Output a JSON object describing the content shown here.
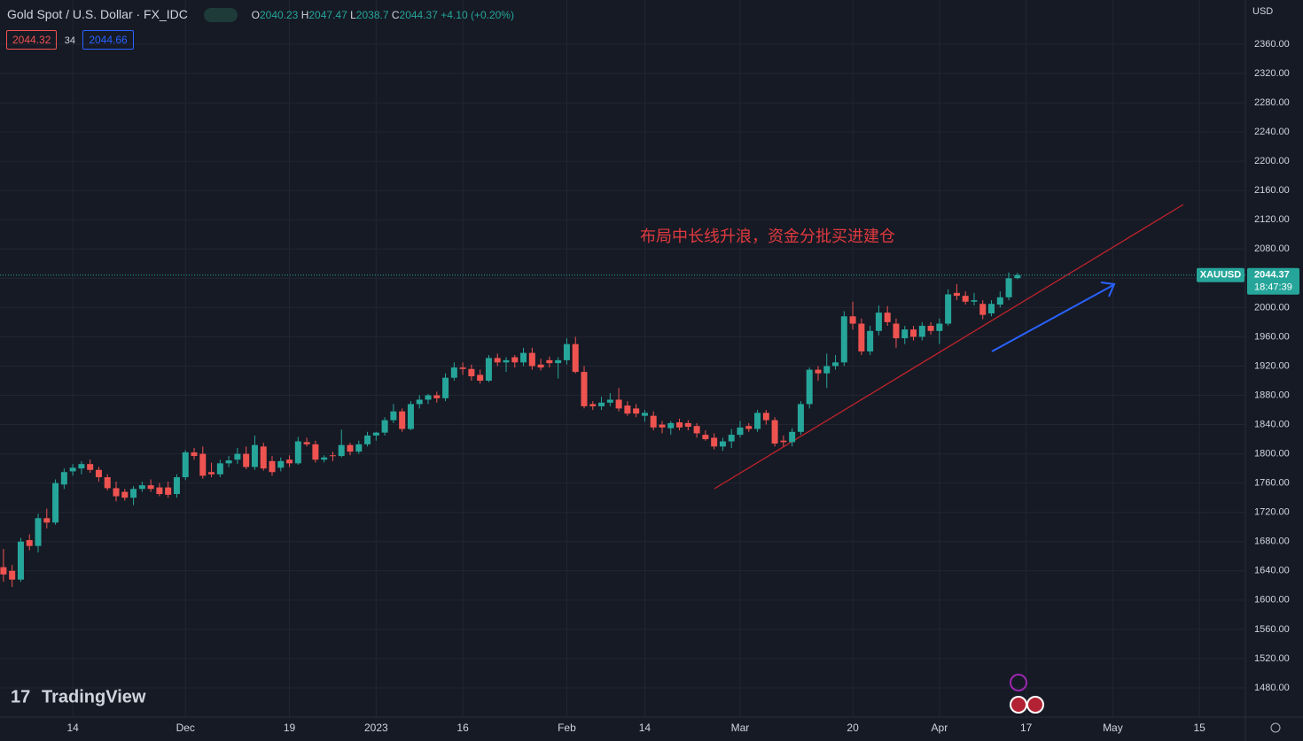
{
  "chart_data": {
    "type": "candlestick",
    "title": "Gold Spot / U.S. Dollar · FX_IDC",
    "ohlc_labels": [
      "O",
      "H",
      "L",
      "C"
    ],
    "change": "+4.10 (+0.20%)",
    "bid": 2044.32,
    "spread": 34,
    "ask": 2044.66,
    "currency": "USD",
    "symbol": "XAUUSD",
    "countdown": "18:47:39",
    "annotation": "布局中长线升浪，资金分批买进建仓",
    "brand": "TradingView",
    "up_color": "#26a69a",
    "down_color": "#ef5350",
    "grid": true,
    "ylim": [
      1440,
      2420.5
    ],
    "xlim": [
      -0.4,
      143.3
    ],
    "yticks": [
      {
        "value": 1480,
        "label": "1480.00"
      },
      {
        "value": 1520,
        "label": "1520.00"
      },
      {
        "value": 1560,
        "label": "1560.00"
      },
      {
        "value": 1600,
        "label": "1600.00"
      },
      {
        "value": 1640,
        "label": "1640.00"
      },
      {
        "value": 1680,
        "label": "1680.00"
      },
      {
        "value": 1720,
        "label": "1720.00"
      },
      {
        "value": 1760,
        "label": "1760.00"
      },
      {
        "value": 1800,
        "label": "1800.00"
      },
      {
        "value": 1840,
        "label": "1840.00"
      },
      {
        "value": 1880,
        "label": "1880.00"
      },
      {
        "value": 1920,
        "label": "1920.00"
      },
      {
        "value": 1960,
        "label": "1960.00"
      },
      {
        "value": 2000,
        "label": "2000.00"
      },
      {
        "value": 2040,
        "label": "2040.00"
      },
      {
        "value": 2080,
        "label": "2080.00"
      },
      {
        "value": 2120,
        "label": "2120.00"
      },
      {
        "value": 2160,
        "label": "2160.00"
      },
      {
        "value": 2200,
        "label": "2200.00"
      },
      {
        "value": 2240,
        "label": "2240.00"
      },
      {
        "value": 2280,
        "label": "2280.00"
      },
      {
        "value": 2320,
        "label": "2320.00"
      },
      {
        "value": 2360,
        "label": "2360.00"
      }
    ],
    "xticks": [
      {
        "value": 8,
        "label": "14"
      },
      {
        "value": 21,
        "label": "Dec"
      },
      {
        "value": 33,
        "label": "19"
      },
      {
        "value": 43,
        "label": "2023"
      },
      {
        "value": 53,
        "label": "16"
      },
      {
        "value": 65,
        "label": "Feb"
      },
      {
        "value": 74,
        "label": "14"
      },
      {
        "value": 85,
        "label": "Mar"
      },
      {
        "value": 98,
        "label": "20"
      },
      {
        "value": 108,
        "label": "Apr"
      },
      {
        "value": 118,
        "label": "17"
      },
      {
        "value": 128,
        "label": "May"
      },
      {
        "value": 138,
        "label": "15"
      }
    ],
    "ohlc": [
      [
        1645,
        1670,
        1625,
        1635
      ],
      [
        1640,
        1648,
        1618,
        1628
      ],
      [
        1628,
        1685,
        1625,
        1680
      ],
      [
        1682,
        1690,
        1668,
        1674
      ],
      [
        1674,
        1718,
        1665,
        1712
      ],
      [
        1712,
        1725,
        1698,
        1706
      ],
      [
        1706,
        1765,
        1703,
        1760
      ],
      [
        1758,
        1780,
        1752,
        1775
      ],
      [
        1776,
        1786,
        1770,
        1781
      ],
      [
        1780,
        1790,
        1772,
        1786
      ],
      [
        1786,
        1792,
        1774,
        1778
      ],
      [
        1778,
        1782,
        1762,
        1768
      ],
      [
        1768,
        1772,
        1750,
        1753
      ],
      [
        1753,
        1762,
        1735,
        1742
      ],
      [
        1748,
        1752,
        1736,
        1740
      ],
      [
        1740,
        1756,
        1730,
        1752
      ],
      [
        1752,
        1762,
        1748,
        1757
      ],
      [
        1757,
        1765,
        1748,
        1752
      ],
      [
        1754,
        1760,
        1742,
        1745
      ],
      [
        1754,
        1762,
        1740,
        1744
      ],
      [
        1745,
        1772,
        1740,
        1768
      ],
      [
        1768,
        1805,
        1764,
        1802
      ],
      [
        1802,
        1808,
        1792,
        1797
      ],
      [
        1800,
        1810,
        1766,
        1770
      ],
      [
        1775,
        1788,
        1768,
        1772
      ],
      [
        1772,
        1792,
        1768,
        1787
      ],
      [
        1787,
        1797,
        1782,
        1791
      ],
      [
        1792,
        1808,
        1786,
        1800
      ],
      [
        1800,
        1810,
        1779,
        1782
      ],
      [
        1782,
        1825,
        1778,
        1812
      ],
      [
        1810,
        1815,
        1777,
        1780
      ],
      [
        1790,
        1797,
        1770,
        1775
      ],
      [
        1781,
        1795,
        1776,
        1790
      ],
      [
        1792,
        1798,
        1782,
        1787
      ],
      [
        1787,
        1823,
        1785,
        1817
      ],
      [
        1816,
        1822,
        1810,
        1813
      ],
      [
        1813,
        1818,
        1788,
        1792
      ],
      [
        1792,
        1798,
        1788,
        1795
      ],
      [
        1798,
        1803,
        1790,
        1797
      ],
      [
        1797,
        1833,
        1795,
        1812
      ],
      [
        1812,
        1815,
        1798,
        1803
      ],
      [
        1803,
        1818,
        1800,
        1813
      ],
      [
        1813,
        1830,
        1810,
        1825
      ],
      [
        1825,
        1830,
        1818,
        1829
      ],
      [
        1829,
        1850,
        1825,
        1846
      ],
      [
        1846,
        1868,
        1842,
        1858
      ],
      [
        1858,
        1862,
        1830,
        1834
      ],
      [
        1834,
        1872,
        1832,
        1868
      ],
      [
        1868,
        1880,
        1862,
        1874
      ],
      [
        1874,
        1882,
        1868,
        1880
      ],
      [
        1880,
        1885,
        1870,
        1876
      ],
      [
        1876,
        1910,
        1872,
        1904
      ],
      [
        1904,
        1925,
        1900,
        1918
      ],
      [
        1918,
        1925,
        1908,
        1916
      ],
      [
        1916,
        1922,
        1900,
        1906
      ],
      [
        1908,
        1915,
        1896,
        1900
      ],
      [
        1900,
        1935,
        1898,
        1931
      ],
      [
        1931,
        1937,
        1920,
        1925
      ],
      [
        1925,
        1932,
        1912,
        1928
      ],
      [
        1932,
        1935,
        1918,
        1925
      ],
      [
        1925,
        1945,
        1920,
        1938
      ],
      [
        1938,
        1945,
        1915,
        1920
      ],
      [
        1922,
        1930,
        1914,
        1918
      ],
      [
        1928,
        1933,
        1918,
        1924
      ],
      [
        1924,
        1932,
        1903,
        1928
      ],
      [
        1928,
        1958,
        1922,
        1950
      ],
      [
        1950,
        1960,
        1910,
        1912
      ],
      [
        1912,
        1920,
        1862,
        1865
      ],
      [
        1868,
        1872,
        1860,
        1865
      ],
      [
        1865,
        1878,
        1860,
        1870
      ],
      [
        1870,
        1883,
        1865,
        1874
      ],
      [
        1874,
        1890,
        1858,
        1862
      ],
      [
        1866,
        1872,
        1852,
        1855
      ],
      [
        1862,
        1868,
        1850,
        1855
      ],
      [
        1852,
        1860,
        1844,
        1856
      ],
      [
        1852,
        1858,
        1832,
        1836
      ],
      [
        1840,
        1845,
        1828,
        1836
      ],
      [
        1835,
        1845,
        1826,
        1842
      ],
      [
        1843,
        1848,
        1832,
        1836
      ],
      [
        1842,
        1846,
        1832,
        1837
      ],
      [
        1838,
        1842,
        1822,
        1828
      ],
      [
        1826,
        1832,
        1818,
        1820
      ],
      [
        1822,
        1828,
        1806,
        1810
      ],
      [
        1810,
        1822,
        1804,
        1817
      ],
      [
        1817,
        1834,
        1808,
        1826
      ],
      [
        1826,
        1845,
        1822,
        1836
      ],
      [
        1838,
        1842,
        1830,
        1834
      ],
      [
        1834,
        1860,
        1830,
        1856
      ],
      [
        1856,
        1860,
        1840,
        1846
      ],
      [
        1846,
        1850,
        1810,
        1814
      ],
      [
        1818,
        1825,
        1810,
        1816
      ],
      [
        1816,
        1835,
        1810,
        1830
      ],
      [
        1830,
        1872,
        1826,
        1868
      ],
      [
        1868,
        1918,
        1862,
        1915
      ],
      [
        1915,
        1920,
        1900,
        1910
      ],
      [
        1910,
        1937,
        1890,
        1920
      ],
      [
        1920,
        1935,
        1915,
        1925
      ],
      [
        1925,
        1995,
        1920,
        1988
      ],
      [
        1988,
        2008,
        1970,
        1978
      ],
      [
        1978,
        1985,
        1935,
        1940
      ],
      [
        1940,
        1975,
        1935,
        1968
      ],
      [
        1968,
        2003,
        1962,
        1993
      ],
      [
        1993,
        2002,
        1975,
        1980
      ],
      [
        1978,
        1985,
        1945,
        1958
      ],
      [
        1958,
        1975,
        1950,
        1970
      ],
      [
        1970,
        1975,
        1955,
        1960
      ],
      [
        1960,
        1980,
        1955,
        1975
      ],
      [
        1975,
        1980,
        1963,
        1968
      ],
      [
        1968,
        1985,
        1950,
        1978
      ],
      [
        1978,
        2025,
        1975,
        2018
      ],
      [
        2020,
        2032,
        2010,
        2016
      ],
      [
        2016,
        2022,
        2004,
        2008
      ],
      [
        2008,
        2020,
        2003,
        2010
      ],
      [
        2005,
        2010,
        1984,
        1990
      ],
      [
        1992,
        2010,
        1988,
        2005
      ],
      [
        2004,
        2022,
        2000,
        2014
      ],
      [
        2014,
        2048,
        2010,
        2040
      ],
      [
        2040.23,
        2047.47,
        2038.7,
        2044.37
      ]
    ]
  }
}
